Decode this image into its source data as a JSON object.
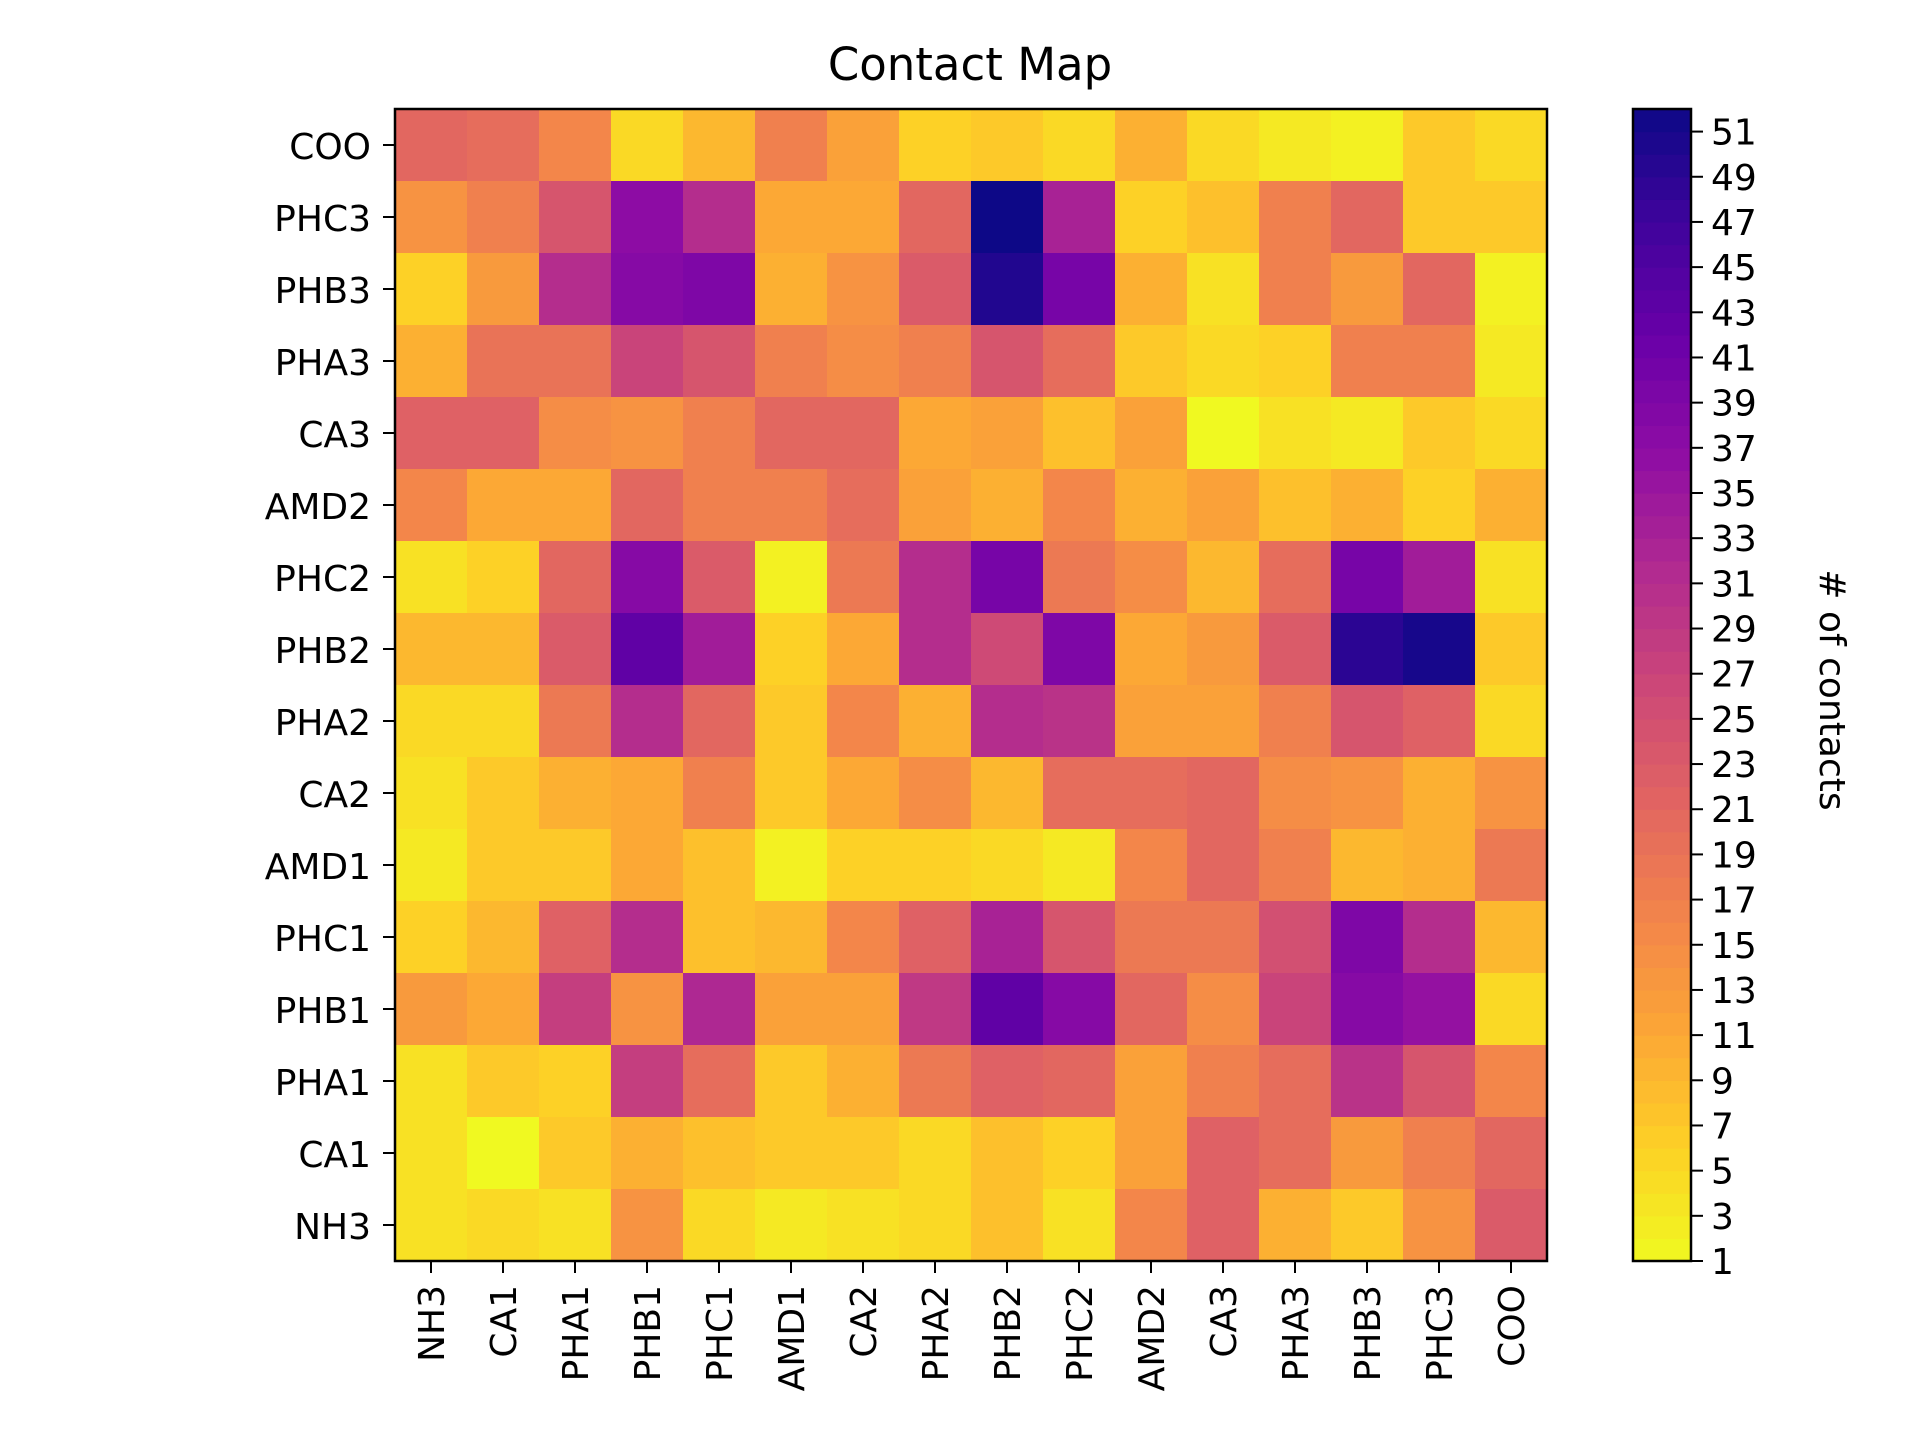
{
  "chart_data": {
    "type": "heatmap",
    "title": "Contact Map",
    "xlabel": "",
    "ylabel": "",
    "x_categories": [
      "NH3",
      "CA1",
      "PHA1",
      "PHB1",
      "PHC1",
      "AMD1",
      "CA2",
      "PHA2",
      "PHB2",
      "PHC2",
      "AMD2",
      "CA3",
      "PHA3",
      "PHB3",
      "PHC3",
      "COO"
    ],
    "y_categories_top_to_bottom": [
      "COO",
      "PHC3",
      "PHB3",
      "PHA3",
      "CA3",
      "AMD2",
      "PHC2",
      "PHB2",
      "PHA2",
      "CA2",
      "AMD1",
      "PHC1",
      "PHB1",
      "PHA1",
      "CA1",
      "NH3"
    ],
    "values_top_to_bottom": [
      [
        21,
        20,
        16,
        5,
        9,
        17,
        12,
        6,
        7,
        5,
        10,
        5,
        3,
        2,
        7,
        5
      ],
      [
        14,
        17,
        24,
        37,
        31,
        11,
        11,
        21,
        52,
        33,
        6,
        8,
        17,
        21,
        7,
        7
      ],
      [
        6,
        13,
        31,
        38,
        39,
        10,
        14,
        23,
        50,
        40,
        10,
        4,
        17,
        13,
        21,
        2
      ],
      [
        10,
        19,
        19,
        27,
        24,
        17,
        15,
        17,
        24,
        20,
        7,
        5,
        6,
        17,
        17,
        3
      ],
      [
        22,
        22,
        15,
        14,
        17,
        21,
        21,
        11,
        12,
        8,
        12,
        1,
        4,
        3,
        7,
        5
      ],
      [
        16,
        11,
        11,
        21,
        17,
        17,
        20,
        12,
        10,
        16,
        10,
        12,
        8,
        10,
        6,
        10
      ],
      [
        4,
        6,
        21,
        38,
        23,
        2,
        18,
        31,
        40,
        18,
        15,
        9,
        20,
        40,
        34,
        4
      ],
      [
        9,
        9,
        23,
        43,
        34,
        6,
        11,
        31,
        26,
        39,
        11,
        13,
        23,
        49,
        51,
        7
      ],
      [
        5,
        5,
        18,
        31,
        21,
        7,
        16,
        10,
        31,
        30,
        12,
        12,
        17,
        24,
        22,
        5
      ],
      [
        4,
        7,
        10,
        11,
        17,
        7,
        11,
        15,
        9,
        20,
        20,
        21,
        15,
        14,
        10,
        14
      ],
      [
        3,
        7,
        7,
        11,
        8,
        2,
        6,
        6,
        5,
        3,
        16,
        21,
        17,
        9,
        10,
        18
      ],
      [
        6,
        9,
        22,
        31,
        8,
        9,
        16,
        22,
        33,
        24,
        18,
        18,
        25,
        39,
        31,
        9
      ],
      [
        13,
        11,
        28,
        14,
        32,
        12,
        12,
        29,
        43,
        38,
        21,
        15,
        27,
        38,
        36,
        5
      ],
      [
        4,
        7,
        6,
        28,
        20,
        7,
        10,
        18,
        22,
        21,
        12,
        17,
        20,
        30,
        24,
        16
      ],
      [
        4,
        1,
        7,
        10,
        8,
        7,
        7,
        5,
        8,
        6,
        12,
        22,
        20,
        13,
        17,
        21
      ],
      [
        4,
        5,
        4,
        14,
        5,
        3,
        4,
        5,
        8,
        4,
        16,
        22,
        10,
        7,
        14,
        23
      ]
    ],
    "colorbar": {
      "label": "# of contacts",
      "colormap": "plasma_r",
      "range": [
        1,
        52
      ],
      "ticks": [
        "1",
        "3",
        "5",
        "7",
        "9",
        "11",
        "13",
        "15",
        "17",
        "19",
        "21",
        "23",
        "25",
        "27",
        "29",
        "31",
        "33",
        "35",
        "37",
        "39",
        "41",
        "43",
        "45",
        "47",
        "49",
        "51"
      ]
    }
  }
}
